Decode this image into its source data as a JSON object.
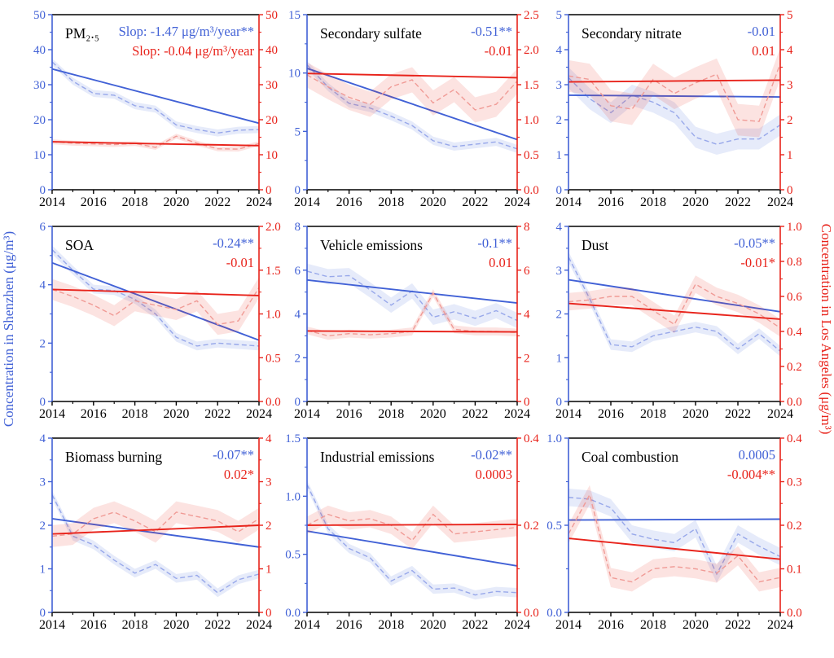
{
  "figure": {
    "left_axis_label": "Concentration in Shenzhen (μg/m³)",
    "right_axis_label": "Concentration in Los Angeles (μg/m³)",
    "colors": {
      "shenzhen_main": "#4161d6",
      "shenzhen_dashed": "#98a8ea",
      "los_angeles_main": "#e8231b",
      "los_angeles_dashed": "#f09b96",
      "frame": "#000000"
    }
  },
  "chart_data": [
    {
      "type": "line",
      "title": "PM₂.₅",
      "x": [
        2014,
        2015,
        2016,
        2017,
        2018,
        2019,
        2020,
        2021,
        2022,
        2023,
        2024
      ],
      "x_tick_labels": [
        "2014",
        "2016",
        "2018",
        "2020",
        "2022",
        "2024"
      ],
      "left_ylim": [
        0,
        50
      ],
      "right_ylim": [
        0,
        50
      ],
      "left_tick_labels": [
        "0",
        "10",
        "20",
        "30",
        "40",
        "50"
      ],
      "right_tick_labels": [
        "0",
        "10",
        "20",
        "30",
        "40",
        "50"
      ],
      "series": [
        {
          "name": "Shenzhen",
          "axis": "left",
          "slope_label": "Slop: -1.47 μg/m³/year**",
          "values": [
            36.5,
            31,
            27.5,
            27,
            24,
            23,
            18.5,
            17.2,
            16.2,
            17,
            17.2
          ],
          "band": 1.0,
          "trend": [
            34.5,
            19
          ]
        },
        {
          "name": "Los Angeles",
          "axis": "right",
          "slope_label": "Slop: -0.04 μg/m³/year",
          "values": [
            13.7,
            13.3,
            13.1,
            12.9,
            13.2,
            12.1,
            15.3,
            13.3,
            11.7,
            11.6,
            13.2
          ],
          "band": 0.7,
          "trend": [
            13.7,
            12.6
          ]
        }
      ]
    },
    {
      "type": "line",
      "title": "Secondary sulfate",
      "x": [
        2014,
        2015,
        2016,
        2017,
        2018,
        2019,
        2020,
        2021,
        2022,
        2023,
        2024
      ],
      "x_tick_labels": [
        "2014",
        "2016",
        "2018",
        "2020",
        "2022",
        "2024"
      ],
      "left_ylim": [
        0,
        15
      ],
      "right_ylim": [
        0,
        2.5
      ],
      "left_tick_labels": [
        "0",
        "5",
        "10",
        "15"
      ],
      "right_tick_labels": [
        "0.0",
        "0.5",
        "1.0",
        "1.5",
        "2.0",
        "2.5"
      ],
      "series": [
        {
          "name": "Shenzhen",
          "axis": "left",
          "slope_label": "-0.51**",
          "values": [
            10.7,
            8.8,
            7.4,
            7.0,
            6.3,
            5.5,
            4.2,
            3.7,
            3.9,
            4.1,
            3.5
          ],
          "band": 0.35,
          "trend": [
            10.4,
            4.3
          ]
        },
        {
          "name": "Los Angeles",
          "axis": "right",
          "slope_label": "-0.01",
          "values": [
            1.64,
            1.47,
            1.32,
            1.22,
            1.47,
            1.57,
            1.24,
            1.43,
            1.14,
            1.22,
            1.55
          ],
          "band": 0.18,
          "trend": [
            1.66,
            1.6
          ]
        }
      ]
    },
    {
      "type": "line",
      "title": "Secondary nitrate",
      "x": [
        2014,
        2015,
        2016,
        2017,
        2018,
        2019,
        2020,
        2021,
        2022,
        2023,
        2024
      ],
      "x_tick_labels": [
        "2014",
        "2016",
        "2018",
        "2020",
        "2022",
        "2024"
      ],
      "left_ylim": [
        0,
        5
      ],
      "right_ylim": [
        0,
        5
      ],
      "left_tick_labels": [
        "0",
        "1",
        "2",
        "3",
        "4",
        "5"
      ],
      "right_tick_labels": [
        "0",
        "1",
        "2",
        "3",
        "4",
        "5"
      ],
      "series": [
        {
          "name": "Shenzhen",
          "axis": "left",
          "slope_label": "-0.01",
          "values": [
            3.2,
            2.6,
            2.2,
            2.7,
            2.5,
            2.2,
            1.5,
            1.3,
            1.45,
            1.45,
            1.85
          ],
          "band": 0.3,
          "trend": [
            2.7,
            2.65
          ]
        },
        {
          "name": "Los Angeles",
          "axis": "right",
          "slope_label": "0.01",
          "values": [
            3.25,
            3.15,
            2.4,
            2.3,
            3.15,
            2.75,
            3.05,
            3.3,
            2.0,
            1.95,
            3.6
          ],
          "band": 0.45,
          "trend": [
            3.08,
            3.13
          ]
        }
      ]
    },
    {
      "type": "line",
      "title": "SOA",
      "x": [
        2014,
        2015,
        2016,
        2017,
        2018,
        2019,
        2020,
        2021,
        2022,
        2023,
        2024
      ],
      "x_tick_labels": [
        "2014",
        "2016",
        "2018",
        "2020",
        "2022",
        "2024"
      ],
      "left_ylim": [
        0,
        6
      ],
      "right_ylim": [
        0,
        2.0
      ],
      "left_tick_labels": [
        "0",
        "2",
        "4",
        "6"
      ],
      "right_tick_labels": [
        "0.0",
        "0.5",
        "1.0",
        "1.5",
        "2.0"
      ],
      "series": [
        {
          "name": "Shenzhen",
          "axis": "left",
          "slope_label": "-0.24**",
          "values": [
            5.2,
            4.5,
            3.85,
            3.8,
            3.5,
            3.0,
            2.2,
            1.9,
            2.0,
            1.95,
            1.9
          ],
          "band": 0.15,
          "trend": [
            4.75,
            2.1
          ]
        },
        {
          "name": "Los Angeles",
          "axis": "right",
          "slope_label": "-0.01",
          "values": [
            1.28,
            1.2,
            1.1,
            0.98,
            1.15,
            1.1,
            1.05,
            1.15,
            0.88,
            0.92,
            1.3
          ],
          "band": 0.12,
          "trend": [
            1.28,
            1.21
          ]
        }
      ]
    },
    {
      "type": "line",
      "title": "Vehicle emissions",
      "x": [
        2014,
        2015,
        2016,
        2017,
        2018,
        2019,
        2020,
        2021,
        2022,
        2023,
        2024
      ],
      "x_tick_labels": [
        "2014",
        "2016",
        "2018",
        "2020",
        "2022",
        "2024"
      ],
      "left_ylim": [
        0,
        8
      ],
      "right_ylim": [
        0,
        8
      ],
      "left_tick_labels": [
        "0",
        "2",
        "4",
        "6",
        "8"
      ],
      "right_tick_labels": [
        "0",
        "2",
        "4",
        "6",
        "8"
      ],
      "series": [
        {
          "name": "Shenzhen",
          "axis": "left",
          "slope_label": "-0.1**",
          "values": [
            5.95,
            5.7,
            5.75,
            5.1,
            4.4,
            5.05,
            3.85,
            4.1,
            3.8,
            4.15,
            3.7
          ],
          "band": 0.35,
          "trend": [
            5.55,
            4.5
          ]
        },
        {
          "name": "Los Angeles",
          "axis": "right",
          "slope_label": "0.01",
          "values": [
            3.25,
            3.0,
            3.1,
            3.05,
            3.1,
            3.2,
            4.95,
            3.3,
            3.2,
            3.2,
            3.15
          ],
          "band": 0.18,
          "trend": [
            3.22,
            3.18
          ]
        }
      ]
    },
    {
      "type": "line",
      "title": "Dust",
      "x": [
        2014,
        2015,
        2016,
        2017,
        2018,
        2019,
        2020,
        2021,
        2022,
        2023,
        2024
      ],
      "x_tick_labels": [
        "2014",
        "2016",
        "2018",
        "2020",
        "2022",
        "2024"
      ],
      "left_ylim": [
        0,
        4
      ],
      "right_ylim": [
        0,
        1.0
      ],
      "left_tick_labels": [
        "0",
        "1",
        "2",
        "3",
        "4"
      ],
      "right_tick_labels": [
        "0.0",
        "0.2",
        "0.4",
        "0.6",
        "0.8",
        "1.0"
      ],
      "series": [
        {
          "name": "Shenzhen",
          "axis": "left",
          "slope_label": "-0.05**",
          "values": [
            3.3,
            2.35,
            1.3,
            1.25,
            1.5,
            1.6,
            1.7,
            1.6,
            1.2,
            1.55,
            1.15
          ],
          "band": 0.12,
          "trend": [
            2.78,
            2.05
          ]
        },
        {
          "name": "Los Angeles",
          "axis": "right",
          "slope_label": "-0.01*",
          "values": [
            0.57,
            0.58,
            0.6,
            0.6,
            0.52,
            0.44,
            0.67,
            0.6,
            0.56,
            0.5,
            0.42
          ],
          "band": 0.05,
          "trend": [
            0.56,
            0.47
          ]
        }
      ]
    },
    {
      "type": "line",
      "title": "Biomass burning",
      "x": [
        2014,
        2015,
        2016,
        2017,
        2018,
        2019,
        2020,
        2021,
        2022,
        2023,
        2024
      ],
      "x_tick_labels": [
        "2014",
        "2016",
        "2018",
        "2020",
        "2022",
        "2024"
      ],
      "left_ylim": [
        0,
        4
      ],
      "right_ylim": [
        0,
        4
      ],
      "left_tick_labels": [
        "0",
        "1",
        "2",
        "3",
        "4"
      ],
      "right_tick_labels": [
        "0",
        "1",
        "2",
        "3",
        "4"
      ],
      "series": [
        {
          "name": "Shenzhen",
          "axis": "left",
          "slope_label": "-0.07**",
          "values": [
            2.7,
            1.75,
            1.55,
            1.2,
            0.9,
            1.1,
            0.78,
            0.85,
            0.45,
            0.75,
            0.88
          ],
          "band": 0.1,
          "trend": [
            2.15,
            1.5
          ]
        },
        {
          "name": "Los Angeles",
          "axis": "right",
          "slope_label": "0.02*",
          "values": [
            1.75,
            1.8,
            2.15,
            2.3,
            2.1,
            1.85,
            2.3,
            2.2,
            2.1,
            1.85,
            2.15
          ],
          "band": 0.25,
          "trend": [
            1.8,
            2.0
          ]
        }
      ]
    },
    {
      "type": "line",
      "title": "Industrial emissions",
      "x": [
        2014,
        2015,
        2016,
        2017,
        2018,
        2019,
        2020,
        2021,
        2022,
        2023,
        2024
      ],
      "x_tick_labels": [
        "2014",
        "2016",
        "2018",
        "2020",
        "2022",
        "2024"
      ],
      "left_ylim": [
        0,
        1.5
      ],
      "right_ylim": [
        0,
        0.4
      ],
      "left_tick_labels": [
        "0.0",
        "0.5",
        "1.0",
        "1.5"
      ],
      "right_tick_labels": [
        "0.0",
        "0.2",
        "0.4"
      ],
      "series": [
        {
          "name": "Shenzhen",
          "axis": "left",
          "slope_label": "-0.02**",
          "values": [
            1.1,
            0.72,
            0.55,
            0.47,
            0.27,
            0.36,
            0.2,
            0.21,
            0.15,
            0.18,
            0.17
          ],
          "band": 0.04,
          "trend": [
            0.7,
            0.4
          ]
        },
        {
          "name": "Los Angeles",
          "axis": "right",
          "slope_label": "0.0003",
          "values": [
            0.2,
            0.225,
            0.21,
            0.215,
            0.2,
            0.165,
            0.225,
            0.18,
            0.185,
            0.19,
            0.195
          ],
          "band": 0.02,
          "trend": [
            0.2,
            0.202
          ]
        }
      ]
    },
    {
      "type": "line",
      "title": "Coal combustion",
      "x": [
        2014,
        2015,
        2016,
        2017,
        2018,
        2019,
        2020,
        2021,
        2022,
        2023,
        2024
      ],
      "x_tick_labels": [
        "2014",
        "2016",
        "2018",
        "2020",
        "2022",
        "2024"
      ],
      "left_ylim": [
        0,
        1.0
      ],
      "right_ylim": [
        0,
        0.4
      ],
      "left_tick_labels": [
        "0.0",
        "0.5",
        "1.0"
      ],
      "right_tick_labels": [
        "0.0",
        "0.1",
        "0.2",
        "0.3",
        "0.4"
      ],
      "series": [
        {
          "name": "Shenzhen",
          "axis": "left",
          "slope_label": "0.0005",
          "values": [
            0.66,
            0.65,
            0.6,
            0.45,
            0.42,
            0.4,
            0.48,
            0.22,
            0.45,
            0.38,
            0.32
          ],
          "band": 0.05,
          "trend": [
            0.53,
            0.535
          ]
        },
        {
          "name": "Los Angeles",
          "axis": "right",
          "slope_label": "-0.004**",
          "values": [
            0.18,
            0.27,
            0.08,
            0.07,
            0.1,
            0.105,
            0.1,
            0.09,
            0.13,
            0.07,
            0.08
          ],
          "band": 0.022,
          "trend": [
            0.17,
            0.122
          ]
        }
      ]
    }
  ]
}
